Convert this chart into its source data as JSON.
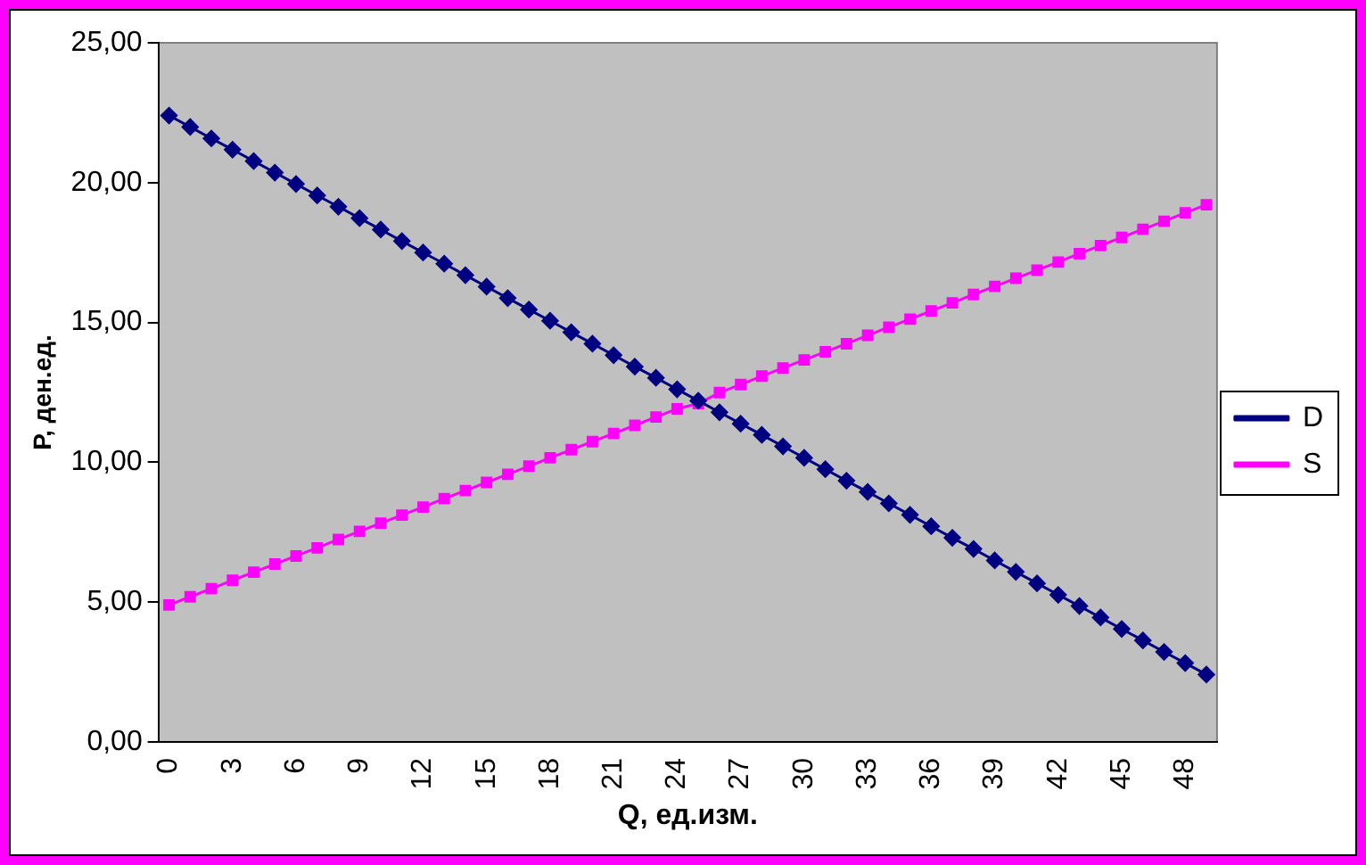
{
  "chart_data": {
    "type": "line",
    "xlabel": "Q, ед.изм.",
    "ylabel": "Р, ден.ед.",
    "categories": [
      "0",
      null,
      null,
      "3",
      null,
      null,
      "6",
      null,
      null,
      "9",
      null,
      null,
      "12",
      null,
      null,
      "15",
      null,
      null,
      "18",
      null,
      null,
      "21",
      null,
      null,
      "24",
      null,
      null,
      "27",
      null,
      null,
      "30",
      null,
      null,
      "33",
      null,
      null,
      "36",
      null,
      null,
      "39",
      null,
      null,
      "42",
      null,
      null,
      "45",
      null,
      null,
      "48",
      null
    ],
    "series": [
      {
        "name": "D",
        "color": "#000080",
        "marker": "diamond",
        "values": [
          22.4,
          21.99,
          21.58,
          21.18,
          20.77,
          20.36,
          19.95,
          19.54,
          19.14,
          18.73,
          18.32,
          17.91,
          17.5,
          17.1,
          16.69,
          16.28,
          15.87,
          15.46,
          15.06,
          14.65,
          14.24,
          13.83,
          13.42,
          13.02,
          12.61,
          12.2,
          11.79,
          11.38,
          10.98,
          10.57,
          10.16,
          9.75,
          9.34,
          8.94,
          8.53,
          8.12,
          7.71,
          7.3,
          6.9,
          6.49,
          6.08,
          5.67,
          5.26,
          4.86,
          4.45,
          4.04,
          3.63,
          3.22,
          2.82,
          2.41
        ]
      },
      {
        "name": "S",
        "color": "#ff00ff",
        "marker": "square",
        "values": [
          4.9,
          5.19,
          5.48,
          5.78,
          6.07,
          6.36,
          6.65,
          6.94,
          7.24,
          7.53,
          7.82,
          8.11,
          8.4,
          8.7,
          8.99,
          9.28,
          9.57,
          9.86,
          10.16,
          10.45,
          10.74,
          11.03,
          11.32,
          11.62,
          11.91,
          12.1,
          12.49,
          12.78,
          13.08,
          13.37,
          13.66,
          13.95,
          14.24,
          14.54,
          14.83,
          15.12,
          15.41,
          15.7,
          16,
          16.29,
          16.58,
          16.87,
          17.16,
          17.46,
          17.75,
          18.04,
          18.33,
          18.62,
          18.92,
          19.21
        ]
      }
    ],
    "ylim": [
      0,
      25
    ],
    "yticks": [
      {
        "value": 0,
        "label": "0,00"
      },
      {
        "value": 5,
        "label": "5,00"
      },
      {
        "value": 10,
        "label": "10,00"
      },
      {
        "value": 15,
        "label": "15,00"
      },
      {
        "value": 20,
        "label": "20,00"
      },
      {
        "value": 25,
        "label": "25,00"
      }
    ],
    "grid": false,
    "legend": "right",
    "line_style": "solid"
  }
}
